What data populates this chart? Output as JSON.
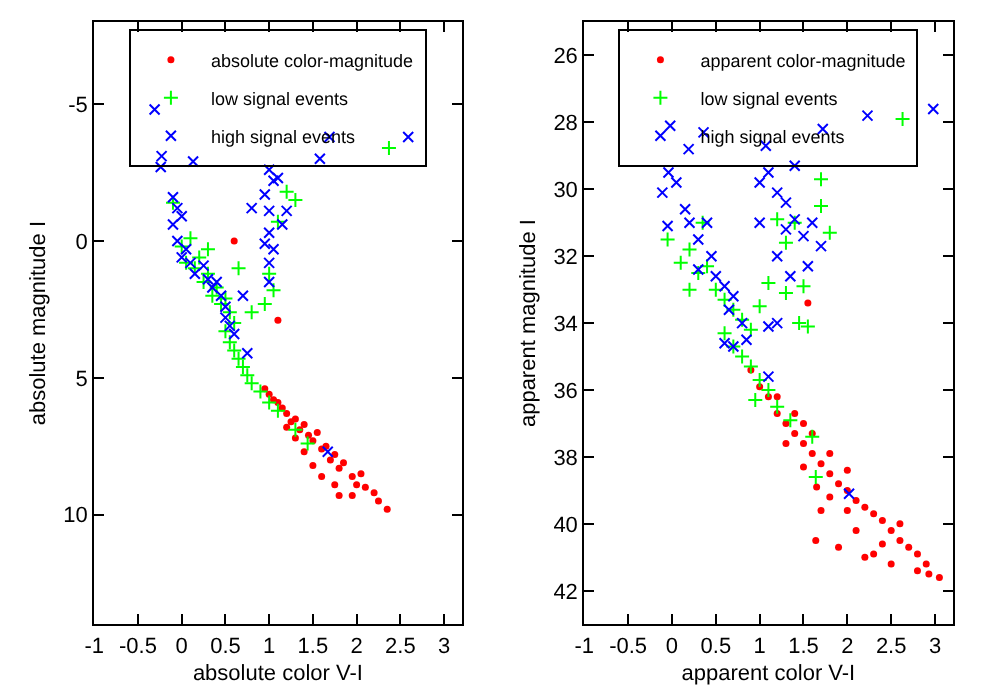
{
  "chart_data": [
    {
      "type": "scatter",
      "xlabel": "absolute color V-I",
      "ylabel": "absolute magnitude I",
      "xlim": [
        -1,
        3.2
      ],
      "ylim": [
        14,
        -8
      ],
      "xticks": [
        -1,
        -0.5,
        0,
        0.5,
        1,
        1.5,
        2,
        2.5,
        3
      ],
      "yticks": [
        -5,
        0,
        5,
        10
      ],
      "legend": "top",
      "series": [
        {
          "name": "absolute color-magnitude",
          "color": "#ff0000",
          "marker": "circle",
          "x": [
            0.95,
            1.0,
            1.05,
            1.1,
            1.15,
            1.2,
            1.25,
            1.3,
            1.35,
            1.4,
            1.45,
            1.5,
            1.55,
            1.6,
            1.65,
            1.7,
            1.75,
            1.8,
            1.85,
            1.95,
            2.0,
            2.05,
            2.1,
            2.2,
            2.25,
            2.35,
            1.5,
            1.6,
            1.75,
            1.8,
            1.95,
            1.4,
            1.3,
            1.2,
            0.6,
            1.1
          ],
          "values": [
            5.4,
            5.6,
            5.8,
            5.9,
            6.1,
            6.3,
            6.6,
            6.5,
            6.9,
            6.7,
            7.1,
            7.3,
            7.0,
            7.6,
            7.5,
            8.0,
            7.8,
            8.3,
            8.1,
            8.6,
            8.9,
            8.5,
            9.0,
            9.2,
            9.5,
            9.8,
            8.2,
            8.6,
            8.9,
            9.3,
            9.3,
            7.7,
            7.2,
            6.8,
            0.0,
            2.9
          ]
        },
        {
          "name": "low signal events",
          "color": "#00ff00",
          "marker": "cross",
          "x": [
            2.37,
            -0.1,
            0.0,
            0.1,
            0.05,
            0.15,
            0.2,
            0.25,
            0.3,
            0.35,
            0.4,
            0.45,
            0.5,
            0.55,
            0.6,
            0.5,
            0.55,
            0.6,
            0.65,
            0.7,
            0.75,
            0.8,
            0.9,
            1.0,
            1.1,
            1.3,
            1.44,
            1.2,
            1.3,
            1.1,
            1.0,
            1.05,
            0.95,
            0.65,
            0.8,
            0.3
          ],
          "values": [
            -3.4,
            -1.4,
            0.2,
            -0.1,
            0.8,
            1.0,
            0.6,
            1.5,
            1.2,
            2.0,
            1.7,
            2.3,
            2.1,
            2.6,
            3.0,
            3.3,
            3.7,
            4.0,
            4.3,
            4.6,
            4.9,
            5.2,
            5.5,
            5.9,
            6.2,
            6.9,
            7.4,
            -1.8,
            -1.5,
            -0.7,
            1.2,
            1.8,
            2.3,
            1.0,
            2.6,
            0.3
          ]
        },
        {
          "name": "high signal events",
          "color": "#0000ff",
          "marker": "x",
          "x": [
            -0.31,
            -0.23,
            -0.24,
            0.13,
            1.69,
            1.58,
            2.59,
            -0.1,
            -0.05,
            -0.1,
            0.0,
            -0.05,
            0.05,
            0.0,
            0.1,
            0.15,
            0.25,
            0.3,
            0.35,
            0.4,
            0.45,
            0.5,
            0.5,
            0.55,
            0.6,
            0.75,
            1.67,
            1.0,
            1.05,
            0.95,
            1.0,
            1.0,
            0.95,
            1.05,
            1.15,
            1.2,
            1.1,
            0.8,
            1.0,
            1.0,
            0.7
          ],
          "values": [
            -4.8,
            -3.1,
            -2.7,
            -2.9,
            -3.8,
            -3.0,
            -3.8,
            -1.6,
            -1.2,
            -0.6,
            -0.9,
            0.0,
            0.3,
            0.6,
            0.8,
            1.2,
            0.9,
            1.4,
            1.7,
            1.5,
            2.0,
            2.4,
            2.8,
            3.1,
            3.4,
            4.1,
            7.7,
            -2.6,
            -2.2,
            -1.7,
            -1.1,
            -0.3,
            0.1,
            0.3,
            -0.6,
            -1.1,
            -2.3,
            -1.2,
            0.8,
            1.5,
            2.0
          ]
        }
      ]
    },
    {
      "type": "scatter",
      "xlabel": "apparent color V-I",
      "ylabel": "apparent magnitude I",
      "xlim": [
        -1,
        3.2
      ],
      "ylim": [
        43,
        25
      ],
      "xticks": [
        -1,
        -0.5,
        0,
        0.5,
        1,
        1.5,
        2,
        2.5,
        3
      ],
      "yticks": [
        26,
        28,
        30,
        32,
        34,
        36,
        38,
        40,
        42
      ],
      "legend": "top",
      "series": [
        {
          "name": "apparent color-magnitude",
          "color": "#ff0000",
          "marker": "circle",
          "x": [
            1.0,
            1.1,
            1.2,
            1.3,
            1.4,
            1.5,
            1.6,
            1.7,
            1.8,
            1.9,
            2.0,
            2.1,
            2.2,
            2.3,
            2.4,
            2.5,
            2.6,
            2.7,
            2.8,
            2.9,
            3.05,
            1.4,
            1.6,
            1.8,
            2.0,
            1.3,
            1.5,
            1.65,
            1.7,
            1.64,
            1.9,
            2.2,
            2.5,
            2.8,
            2.93,
            2.1,
            2.4,
            2.6,
            2.0,
            1.8,
            2.3,
            1.2,
            1.5,
            1.55,
            0.9
          ],
          "values": [
            35.9,
            36.2,
            36.7,
            37.0,
            37.3,
            37.6,
            37.9,
            38.2,
            38.5,
            38.8,
            39.0,
            39.3,
            39.5,
            39.7,
            39.9,
            40.2,
            40.5,
            40.7,
            40.9,
            41.2,
            41.6,
            36.7,
            37.3,
            37.9,
            38.4,
            37.6,
            38.3,
            38.9,
            39.6,
            40.5,
            40.7,
            41.0,
            41.2,
            41.4,
            41.5,
            40.2,
            40.6,
            40.0,
            39.6,
            39.2,
            40.9,
            36.2,
            37.0,
            33.4,
            35.4
          ]
        },
        {
          "name": "low signal events",
          "color": "#00ff00",
          "marker": "cross",
          "x": [
            2.63,
            1.7,
            1.7,
            1.8,
            1.4,
            1.2,
            1.3,
            -0.05,
            0.1,
            0.2,
            0.3,
            0.4,
            0.5,
            0.6,
            0.7,
            0.8,
            0.6,
            0.7,
            0.8,
            0.9,
            1.0,
            1.1,
            1.2,
            1.35,
            1.6,
            1.64,
            0.9,
            1.0,
            1.1,
            1.3,
            1.45,
            1.55,
            0.35,
            0.2,
            1.5,
            0.95
          ],
          "values": [
            27.9,
            29.7,
            30.5,
            31.3,
            31.0,
            30.9,
            31.6,
            31.5,
            32.2,
            31.8,
            32.5,
            32.3,
            33.0,
            33.3,
            33.6,
            33.9,
            34.3,
            34.7,
            35.0,
            35.3,
            35.7,
            36.0,
            36.5,
            36.9,
            37.4,
            38.6,
            34.2,
            33.5,
            32.8,
            33.1,
            34.0,
            34.1,
            31.0,
            33.0,
            32.9,
            36.3
          ]
        },
        {
          "name": "high signal events",
          "color": "#0000ff",
          "marker": "x",
          "x": [
            -0.02,
            0.36,
            0.19,
            1.07,
            1.72,
            2.23,
            2.98,
            -0.04,
            -0.11,
            0.05,
            0.15,
            0.2,
            -0.05,
            0.3,
            0.4,
            0.45,
            0.3,
            0.5,
            0.6,
            0.7,
            0.65,
            0.8,
            0.85,
            0.7,
            0.6,
            1.1,
            1.2,
            1.1,
            2.02,
            1.0,
            1.1,
            1.2,
            1.3,
            1.4,
            1.5,
            1.6,
            1.7,
            1.0,
            1.3,
            1.2,
            1.35,
            1.55,
            1.4
          ],
          "values": [
            28.1,
            28.3,
            28.8,
            28.7,
            28.2,
            27.8,
            27.6,
            29.5,
            30.1,
            29.8,
            30.6,
            31.0,
            31.1,
            31.5,
            31.0,
            32.0,
            32.4,
            32.6,
            32.9,
            33.2,
            33.6,
            34.0,
            34.5,
            34.7,
            34.6,
            34.1,
            34.0,
            35.6,
            39.1,
            29.8,
            29.5,
            30.1,
            30.4,
            30.9,
            31.4,
            31.0,
            31.7,
            31.0,
            31.2,
            32.0,
            32.6,
            32.3,
            29.3
          ]
        }
      ]
    }
  ]
}
